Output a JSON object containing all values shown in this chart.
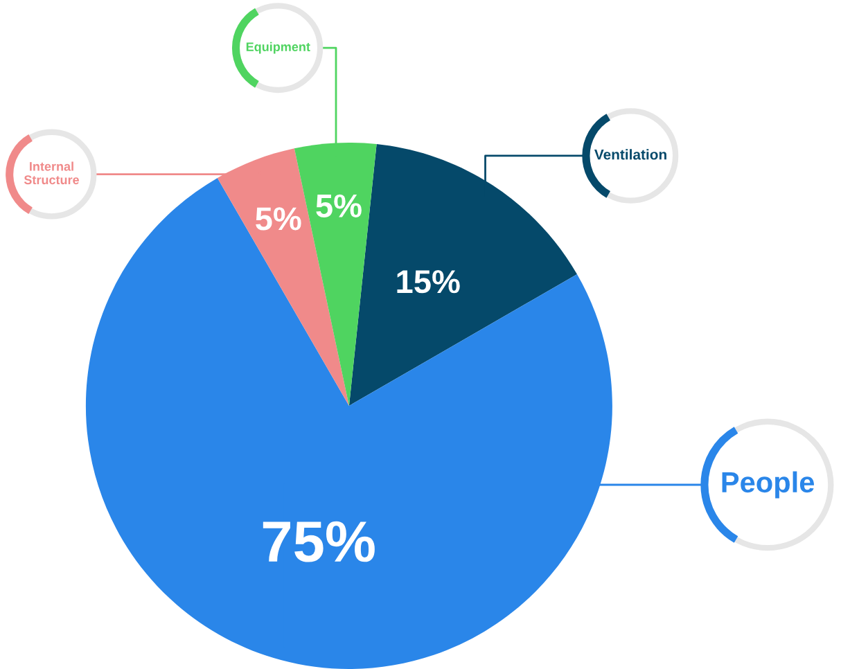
{
  "chart_data": {
    "type": "pie",
    "categories": [
      "Ventilation",
      "People",
      "Internal Structure",
      "Equipment"
    ],
    "values": [
      15,
      75,
      5,
      5
    ],
    "colors": [
      "#05496a",
      "#2a86e9",
      "#f08a8a",
      "#4fd460"
    ],
    "value_labels": [
      "15%",
      "75%",
      "5%",
      "5%"
    ]
  }
}
